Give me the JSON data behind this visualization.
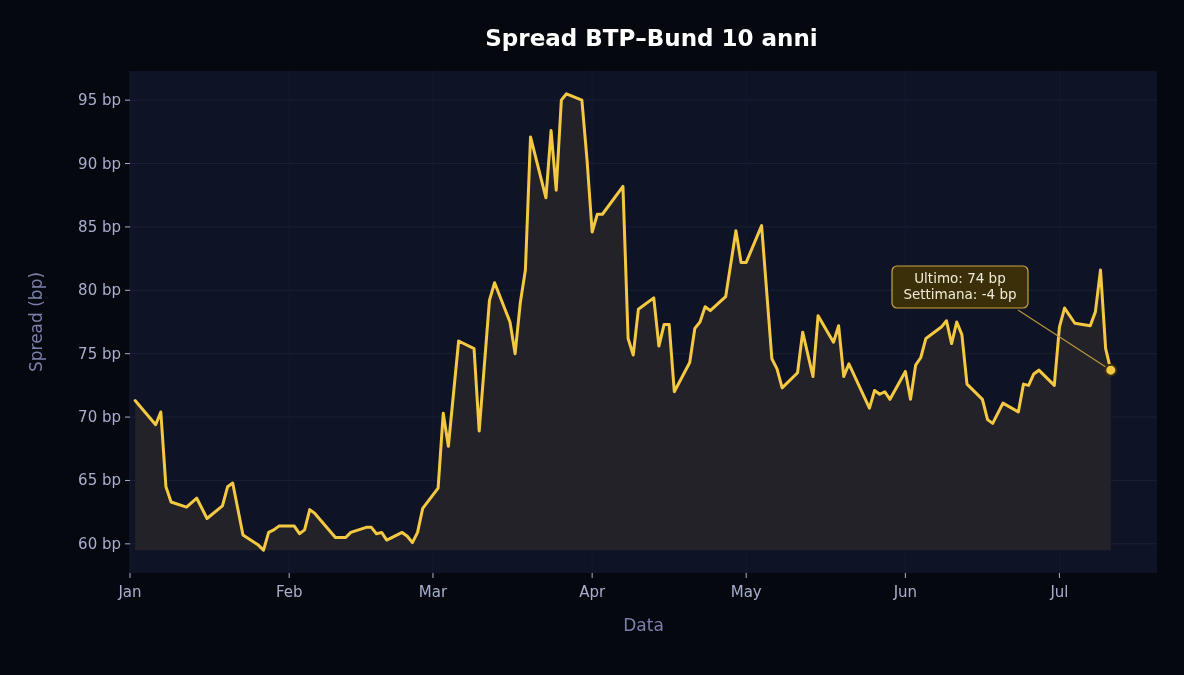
{
  "chart_data": {
    "type": "area",
    "title": "Spread BTP–Bund 10 anni",
    "xlabel": "Data",
    "ylabel": "Spread (bp)",
    "xlim": [
      "--01-01",
      "--07-20"
    ],
    "xticks": [
      {
        "value": "--01-01",
        "label": "Jan"
      },
      {
        "value": "--02-01",
        "label": "Feb"
      },
      {
        "value": "--03-01",
        "label": "Mar"
      },
      {
        "value": "--04-01",
        "label": "Apr"
      },
      {
        "value": "--05-01",
        "label": "May"
      },
      {
        "value": "--06-01",
        "label": "Jun"
      },
      {
        "value": "--07-01",
        "label": "Jul"
      }
    ],
    "ylim": [
      57.7,
      97.3
    ],
    "yticks": [
      {
        "value": 60,
        "label": "60 bp"
      },
      {
        "value": 65,
        "label": "65 bp"
      },
      {
        "value": 70,
        "label": "70 bp"
      },
      {
        "value": 75,
        "label": "75 bp"
      },
      {
        "value": 80,
        "label": "80 bp"
      },
      {
        "value": 85,
        "label": "85 bp"
      },
      {
        "value": 90,
        "label": "90 bp"
      },
      {
        "value": 95,
        "label": "95 bp"
      }
    ],
    "grid": true,
    "series": [
      {
        "color": "#f5c842",
        "x": [
          "--01-02",
          "--01-06",
          "--01-07",
          "--01-08",
          "--01-09",
          "--01-12",
          "--01-14",
          "--01-16",
          "--01-19",
          "--01-20",
          "--01-21",
          "--01-23",
          "--01-26",
          "--01-27",
          "--01-28",
          "--01-29",
          "--01-30",
          "--02-02",
          "--02-03",
          "--02-04",
          "--02-05",
          "--02-06",
          "--02-10",
          "--02-12",
          "--02-13",
          "--02-16",
          "--02-17",
          "--02-18",
          "--02-19",
          "--02-20",
          "--02-23",
          "--02-24",
          "--02-25",
          "--02-26",
          "--02-27",
          "--03-02",
          "--03-03",
          "--03-04",
          "--03-06",
          "--03-09",
          "--03-10",
          "--03-12",
          "--03-13",
          "--03-16",
          "--03-17",
          "--03-18",
          "--03-19",
          "--03-20",
          "--03-23",
          "--03-24",
          "--03-25",
          "--03-26",
          "--03-27",
          "--03-30",
          "--03-31",
          "--04-01",
          "--04-02",
          "--04-03",
          "--04-07",
          "--04-08",
          "--04-09",
          "--04-10",
          "--04-13",
          "--04-14",
          "--04-15",
          "--04-16",
          "--04-17",
          "--04-20",
          "--04-21",
          "--04-22",
          "--04-23",
          "--04-24",
          "--04-27",
          "--04-29",
          "--04-30",
          "--05-01",
          "--05-04",
          "--05-06",
          "--05-07",
          "--05-08",
          "--05-11",
          "--05-12",
          "--05-14",
          "--05-15",
          "--05-18",
          "--05-19",
          "--05-20",
          "--05-21",
          "--05-25",
          "--05-26",
          "--05-27",
          "--05-28",
          "--05-29",
          "--06-01",
          "--06-02",
          "--06-03",
          "--06-04",
          "--06-05",
          "--06-08",
          "--06-09",
          "--06-10",
          "--06-11",
          "--06-12",
          "--06-13",
          "--06-16",
          "--06-17",
          "--06-18",
          "--06-20",
          "--06-23",
          "--06-24",
          "--06-25",
          "--06-26",
          "--06-27",
          "--06-30",
          "--07-01",
          "--07-02",
          "--07-04",
          "--07-07",
          "--07-08",
          "--07-09",
          "--07-10",
          "--07-11"
        ],
        "values": [
          71.3,
          69.4,
          70.4,
          64.5,
          63.3,
          62.9,
          63.6,
          62.0,
          63.0,
          64.5,
          64.8,
          60.7,
          59.9,
          59.5,
          60.9,
          61.1,
          61.4,
          61.4,
          60.8,
          61.1,
          62.7,
          62.4,
          60.5,
          60.5,
          60.9,
          61.3,
          61.3,
          60.8,
          60.9,
          60.3,
          60.9,
          60.6,
          60.1,
          60.9,
          62.8,
          64.4,
          70.3,
          67.7,
          76.0,
          75.4,
          68.9,
          79.2,
          80.6,
          77.5,
          75.0,
          79.0,
          81.6,
          92.1,
          87.3,
          92.6,
          87.9,
          95.0,
          95.5,
          95.0,
          90.3,
          84.6,
          86.0,
          86.0,
          88.2,
          76.2,
          74.9,
          78.5,
          79.4,
          75.6,
          77.3,
          77.3,
          72.0,
          74.3,
          77.0,
          77.5,
          78.7,
          78.4,
          79.5,
          84.7,
          82.2,
          82.2,
          85.1,
          74.6,
          73.8,
          72.3,
          73.5,
          76.7,
          73.2,
          78.0,
          75.9,
          77.2,
          73.2,
          74.2,
          70.7,
          72.1,
          71.8,
          72.0,
          71.4,
          73.6,
          71.4,
          74.1,
          74.7,
          76.2,
          77.1,
          77.6,
          75.8,
          77.5,
          76.5,
          72.6,
          71.4,
          69.8,
          69.5,
          71.1,
          70.4,
          72.6,
          72.5,
          73.4,
          73.7,
          72.5,
          77.1,
          78.6,
          77.4,
          77.2,
          78.3,
          81.6,
          75.4,
          73.7
        ]
      }
    ],
    "annotations": [
      {
        "text": "Ultimo: 74 bp\nSettimana: -4 bp",
        "x": "--07-11",
        "y": 73.7
      }
    ]
  }
}
